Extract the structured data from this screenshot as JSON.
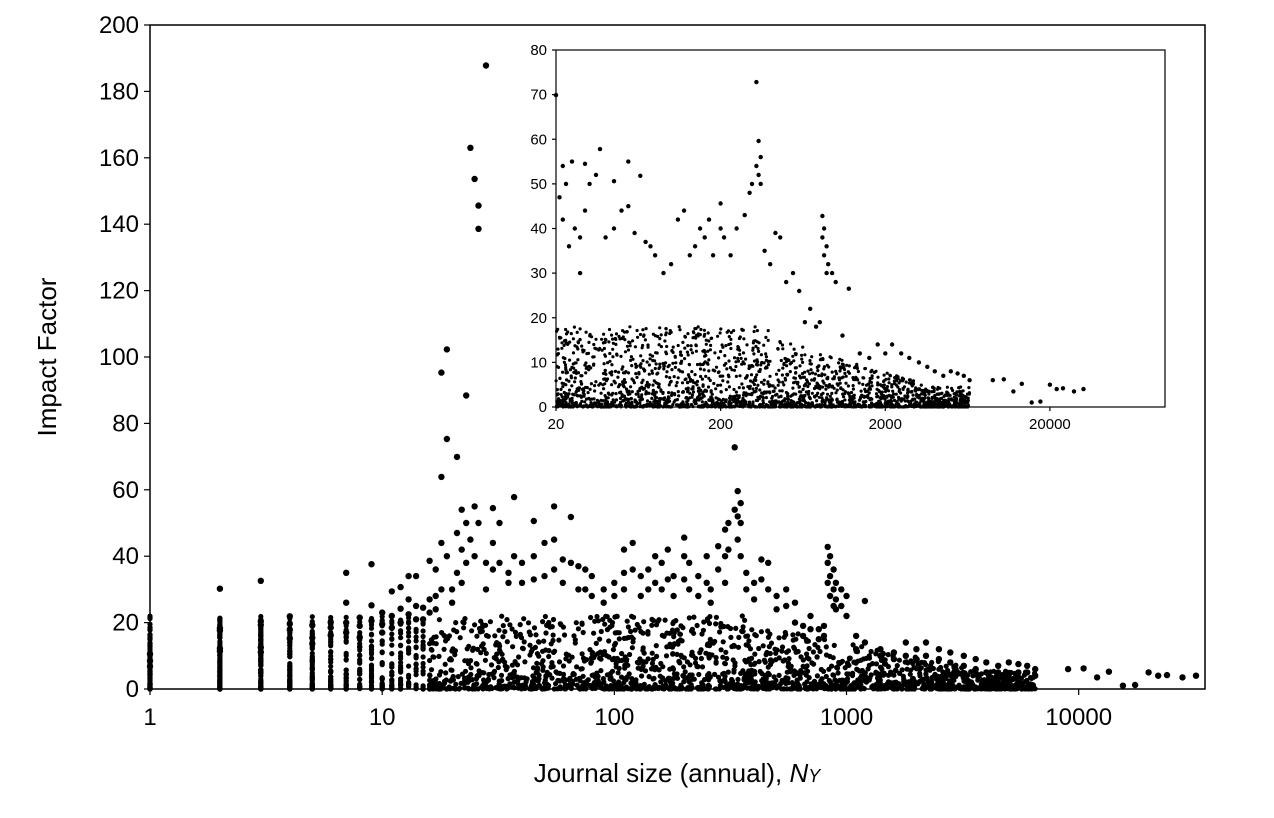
{
  "chart_data": [
    {
      "id": "main",
      "type": "scatter",
      "xlabel_main": "Journal size (annual), ",
      "xlabel_italic": "N",
      "xlabel_sub": "Y",
      "ylabel": "Impact Factor",
      "xscale": "log",
      "xlim": [
        1,
        35000
      ],
      "ylim": [
        0,
        200
      ],
      "xticks": [
        1,
        10,
        100,
        1000,
        10000
      ],
      "xtick_labels": [
        "1",
        "10",
        "100",
        "1000",
        "10000"
      ],
      "yticks": [
        0,
        20,
        40,
        60,
        80,
        100,
        120,
        140,
        160,
        180,
        200
      ],
      "ytick_labels": [
        "0",
        "20",
        "40",
        "60",
        "80",
        "100",
        "120",
        "140",
        "160",
        "180",
        "200"
      ],
      "grid": false,
      "legend": "none",
      "marker_color": "#000000",
      "points": [
        [
          1,
          10.5
        ],
        [
          1,
          8.5
        ],
        [
          1,
          6.8
        ],
        [
          2,
          30.2
        ],
        [
          2,
          18.3
        ],
        [
          2,
          17.6
        ],
        [
          2,
          12.2
        ],
        [
          2,
          11.4
        ],
        [
          3,
          32.6
        ],
        [
          3,
          20.4
        ],
        [
          3,
          19.3
        ],
        [
          3,
          12.5
        ],
        [
          3,
          11.1
        ],
        [
          4,
          21.9
        ],
        [
          4,
          19.6
        ],
        [
          4,
          17.8
        ],
        [
          4,
          15.2
        ],
        [
          5,
          19.2
        ],
        [
          5,
          15.4
        ],
        [
          5,
          13.6
        ],
        [
          6,
          20.1
        ],
        [
          6,
          18.5
        ],
        [
          6,
          16.2
        ],
        [
          7,
          35.0
        ],
        [
          7,
          26.0
        ],
        [
          7,
          20.0
        ],
        [
          7,
          17.0
        ],
        [
          8,
          21.5
        ],
        [
          8,
          19.0
        ],
        [
          8,
          15.5
        ],
        [
          9,
          37.6
        ],
        [
          9,
          25.2
        ],
        [
          9,
          20.5
        ],
        [
          10,
          23.0
        ],
        [
          10,
          19.5
        ],
        [
          10,
          17.0
        ],
        [
          11,
          29.4
        ],
        [
          11,
          22.0
        ],
        [
          11,
          18.5
        ],
        [
          12,
          30.7
        ],
        [
          12,
          24.2
        ],
        [
          12,
          20.0
        ],
        [
          13,
          34.0
        ],
        [
          13,
          27.0
        ],
        [
          13,
          22.5
        ],
        [
          14,
          34.0
        ],
        [
          14,
          25.0
        ],
        [
          14,
          21.0
        ],
        [
          15,
          24.5
        ],
        [
          15,
          21.0
        ],
        [
          16,
          38.6
        ],
        [
          16,
          27.0
        ],
        [
          16,
          23.0
        ],
        [
          17,
          36.0
        ],
        [
          17,
          28.0
        ],
        [
          17,
          24.0
        ],
        [
          18,
          95.3
        ],
        [
          18,
          63.9
        ],
        [
          18,
          44.0
        ],
        [
          18,
          30.0
        ],
        [
          19,
          102.3
        ],
        [
          19,
          75.3
        ],
        [
          19,
          40.0
        ],
        [
          20,
          30.0
        ],
        [
          20,
          26.0
        ],
        [
          21,
          69.9
        ],
        [
          21,
          47.0
        ],
        [
          21,
          35.0
        ],
        [
          22,
          54.0
        ],
        [
          22,
          42.0
        ],
        [
          22,
          32.0
        ],
        [
          23,
          88.4
        ],
        [
          23,
          50.0
        ],
        [
          23,
          38.0
        ],
        [
          24,
          163.0
        ],
        [
          24,
          45.0
        ],
        [
          25,
          153.6
        ],
        [
          25,
          55.0
        ],
        [
          25,
          40.0
        ],
        [
          26,
          145.6
        ],
        [
          26,
          138.6
        ],
        [
          26,
          50.0
        ],
        [
          28,
          187.8
        ],
        [
          28,
          38.0
        ],
        [
          28,
          30.0
        ],
        [
          30,
          54.5
        ],
        [
          30,
          44.0
        ],
        [
          30,
          36.0
        ],
        [
          32,
          50.0
        ],
        [
          32,
          38.0
        ],
        [
          35,
          35.0
        ],
        [
          35,
          32.0
        ],
        [
          37,
          57.8
        ],
        [
          37,
          40.0
        ],
        [
          40,
          38.0
        ],
        [
          40,
          32.0
        ],
        [
          45,
          50.6
        ],
        [
          45,
          40.0
        ],
        [
          45,
          33.0
        ],
        [
          50,
          44.0
        ],
        [
          50,
          34.0
        ],
        [
          55,
          55.0
        ],
        [
          55,
          45.0
        ],
        [
          55,
          36.0
        ],
        [
          60,
          39.0
        ],
        [
          60,
          32.0
        ],
        [
          65,
          51.8
        ],
        [
          65,
          38.0
        ],
        [
          70,
          37.0
        ],
        [
          70,
          30.0
        ],
        [
          75,
          36.0
        ],
        [
          75,
          30.0
        ],
        [
          80,
          34.0
        ],
        [
          80,
          28.0
        ],
        [
          90,
          30.0
        ],
        [
          90,
          26.0
        ],
        [
          100,
          32.0
        ],
        [
          100,
          28.0
        ],
        [
          110,
          42.0
        ],
        [
          110,
          35.0
        ],
        [
          110,
          30.0
        ],
        [
          120,
          44.0
        ],
        [
          120,
          36.0
        ],
        [
          130,
          34.0
        ],
        [
          130,
          28.0
        ],
        [
          140,
          36.0
        ],
        [
          140,
          30.0
        ],
        [
          150,
          40.0
        ],
        [
          150,
          32.0
        ],
        [
          160,
          38.0
        ],
        [
          160,
          30.0
        ],
        [
          170,
          42.0
        ],
        [
          170,
          33.0
        ],
        [
          180,
          34.0
        ],
        [
          180,
          28.0
        ],
        [
          200,
          45.6
        ],
        [
          200,
          40.0
        ],
        [
          200,
          33.0
        ],
        [
          210,
          38.0
        ],
        [
          210,
          30.0
        ],
        [
          230,
          34.0
        ],
        [
          230,
          28.0
        ],
        [
          250,
          40.0
        ],
        [
          250,
          32.0
        ],
        [
          260,
          30.0
        ],
        [
          260,
          26.0
        ],
        [
          280,
          43.0
        ],
        [
          280,
          36.0
        ],
        [
          300,
          48.0
        ],
        [
          300,
          40.0
        ],
        [
          300,
          32.0
        ],
        [
          310,
          50.0
        ],
        [
          310,
          42.0
        ],
        [
          330,
          72.8
        ],
        [
          330,
          54.0
        ],
        [
          340,
          59.6
        ],
        [
          340,
          52.0
        ],
        [
          340,
          45.0
        ],
        [
          350,
          56.0
        ],
        [
          350,
          50.0
        ],
        [
          350,
          40.0
        ],
        [
          370,
          35.0
        ],
        [
          370,
          30.0
        ],
        [
          400,
          32.0
        ],
        [
          400,
          27.0
        ],
        [
          430,
          39.0
        ],
        [
          430,
          33.0
        ],
        [
          460,
          38.0
        ],
        [
          460,
          30.0
        ],
        [
          500,
          28.0
        ],
        [
          500,
          24.0
        ],
        [
          550,
          30.0
        ],
        [
          550,
          25.0
        ],
        [
          600,
          26.0
        ],
        [
          600,
          20.0
        ],
        [
          650,
          19.0
        ],
        [
          650,
          16.0
        ],
        [
          700,
          22.0
        ],
        [
          700,
          18.0
        ],
        [
          760,
          18.0
        ],
        [
          760,
          15.0
        ],
        [
          800,
          19.0
        ],
        [
          800,
          16.0
        ],
        [
          830,
          42.8
        ],
        [
          830,
          38.0
        ],
        [
          830,
          32.0
        ],
        [
          850,
          40.0
        ],
        [
          850,
          34.0
        ],
        [
          850,
          28.0
        ],
        [
          880,
          36.0
        ],
        [
          880,
          30.0
        ],
        [
          880,
          25.0
        ],
        [
          900,
          32.0
        ],
        [
          900,
          27.0
        ],
        [
          900,
          24.0
        ],
        [
          950,
          30.0
        ],
        [
          950,
          25.0
        ],
        [
          1000,
          28.0
        ],
        [
          1000,
          22.0
        ],
        [
          1100,
          16.0
        ],
        [
          1100,
          12.0
        ],
        [
          1200,
          26.5
        ],
        [
          1200,
          14.0
        ],
        [
          1400,
          12.0
        ],
        [
          1400,
          10.0
        ],
        [
          1600,
          11.0
        ],
        [
          1600,
          9.0
        ],
        [
          1800,
          14.0
        ],
        [
          1800,
          10.0
        ],
        [
          2000,
          12.0
        ],
        [
          2000,
          9.0
        ],
        [
          2200,
          14.0
        ],
        [
          2200,
          10.0
        ],
        [
          2500,
          12.0
        ],
        [
          2500,
          9.0
        ],
        [
          2800,
          11.0
        ],
        [
          2800,
          8.0
        ],
        [
          3200,
          10.0
        ],
        [
          3200,
          7.0
        ],
        [
          3600,
          9.0
        ],
        [
          3600,
          6.0
        ],
        [
          4000,
          8.0
        ],
        [
          4000,
          5.0
        ],
        [
          4500,
          7.0
        ],
        [
          4500,
          5.0
        ],
        [
          5000,
          8.0
        ],
        [
          5000,
          4.5
        ],
        [
          5500,
          7.5
        ],
        [
          5500,
          5.0
        ],
        [
          6000,
          7.0
        ],
        [
          6000,
          5.0
        ],
        [
          6500,
          6.0
        ],
        [
          6500,
          4.0
        ],
        [
          9000,
          6.0
        ],
        [
          10500,
          6.2
        ],
        [
          12000,
          3.5
        ],
        [
          13500,
          5.2
        ],
        [
          15500,
          1.0
        ],
        [
          17500,
          1.2
        ],
        [
          20000,
          5.0
        ],
        [
          22000,
          4.0
        ],
        [
          24000,
          4.2
        ],
        [
          28000,
          3.5
        ],
        [
          32000,
          4.0
        ]
      ]
    },
    {
      "id": "inset",
      "type": "scatter",
      "xscale": "log",
      "xlim": [
        20,
        100000
      ],
      "ylim": [
        0,
        80
      ],
      "xticks": [
        20,
        200,
        2000,
        20000
      ],
      "xtick_labels": [
        "20",
        "200",
        "2000",
        "20000"
      ],
      "yticks": [
        0,
        10,
        20,
        30,
        40,
        50,
        60,
        70,
        80
      ],
      "ytick_labels": [
        "0",
        "10",
        "20",
        "30",
        "40",
        "50",
        "60",
        "70",
        "80"
      ],
      "grid": false,
      "legend": "none",
      "marker_color": "#000000",
      "points": [
        [
          20,
          69.9
        ],
        [
          21,
          47.0
        ],
        [
          22,
          54.0
        ],
        [
          22,
          42.0
        ],
        [
          23,
          50.0
        ],
        [
          24,
          36.0
        ],
        [
          25,
          55.0
        ],
        [
          26,
          40.0
        ],
        [
          28,
          38.0
        ],
        [
          28,
          30.0
        ],
        [
          30,
          54.5
        ],
        [
          30,
          44.0
        ],
        [
          32,
          50.0
        ],
        [
          35,
          52.0
        ],
        [
          37,
          57.8
        ],
        [
          40,
          38.0
        ],
        [
          45,
          50.6
        ],
        [
          45,
          40.0
        ],
        [
          50,
          44.0
        ],
        [
          55,
          55.0
        ],
        [
          55,
          45.0
        ],
        [
          60,
          39.0
        ],
        [
          65,
          51.8
        ],
        [
          70,
          37.0
        ],
        [
          75,
          36.0
        ],
        [
          80,
          34.0
        ],
        [
          90,
          30.0
        ],
        [
          100,
          32.0
        ],
        [
          110,
          42.0
        ],
        [
          120,
          44.0
        ],
        [
          130,
          34.0
        ],
        [
          140,
          36.0
        ],
        [
          150,
          40.0
        ],
        [
          160,
          38.0
        ],
        [
          170,
          42.0
        ],
        [
          180,
          34.0
        ],
        [
          200,
          45.6
        ],
        [
          200,
          40.0
        ],
        [
          210,
          38.0
        ],
        [
          230,
          34.0
        ],
        [
          250,
          40.0
        ],
        [
          280,
          43.0
        ],
        [
          300,
          48.0
        ],
        [
          310,
          50.0
        ],
        [
          330,
          72.8
        ],
        [
          330,
          54.0
        ],
        [
          340,
          59.6
        ],
        [
          340,
          52.0
        ],
        [
          350,
          56.0
        ],
        [
          350,
          50.0
        ],
        [
          370,
          35.0
        ],
        [
          400,
          32.0
        ],
        [
          430,
          39.0
        ],
        [
          460,
          38.0
        ],
        [
          500,
          28.0
        ],
        [
          550,
          30.0
        ],
        [
          600,
          26.0
        ],
        [
          650,
          19.0
        ],
        [
          700,
          22.0
        ],
        [
          760,
          18.0
        ],
        [
          800,
          19.0
        ],
        [
          830,
          42.8
        ],
        [
          830,
          38.0
        ],
        [
          850,
          40.0
        ],
        [
          850,
          34.0
        ],
        [
          880,
          36.0
        ],
        [
          880,
          30.0
        ],
        [
          900,
          32.0
        ],
        [
          950,
          30.0
        ],
        [
          1000,
          28.0
        ],
        [
          1100,
          16.0
        ],
        [
          1200,
          26.5
        ],
        [
          1400,
          12.0
        ],
        [
          1600,
          11.0
        ],
        [
          1800,
          14.0
        ],
        [
          2000,
          12.0
        ],
        [
          2200,
          14.0
        ],
        [
          2500,
          12.0
        ],
        [
          2800,
          11.0
        ],
        [
          3200,
          10.0
        ],
        [
          3600,
          9.0
        ],
        [
          4000,
          8.0
        ],
        [
          4500,
          7.0
        ],
        [
          5000,
          8.0
        ],
        [
          5500,
          7.5
        ],
        [
          6000,
          7.0
        ],
        [
          6500,
          6.0
        ],
        [
          9000,
          6.0
        ],
        [
          10500,
          6.2
        ],
        [
          12000,
          3.5
        ],
        [
          13500,
          5.2
        ],
        [
          15500,
          1.0
        ],
        [
          17500,
          1.2
        ],
        [
          20000,
          5.0
        ],
        [
          22000,
          4.0
        ],
        [
          24000,
          4.2
        ],
        [
          28000,
          3.5
        ],
        [
          32000,
          4.0
        ]
      ]
    }
  ]
}
